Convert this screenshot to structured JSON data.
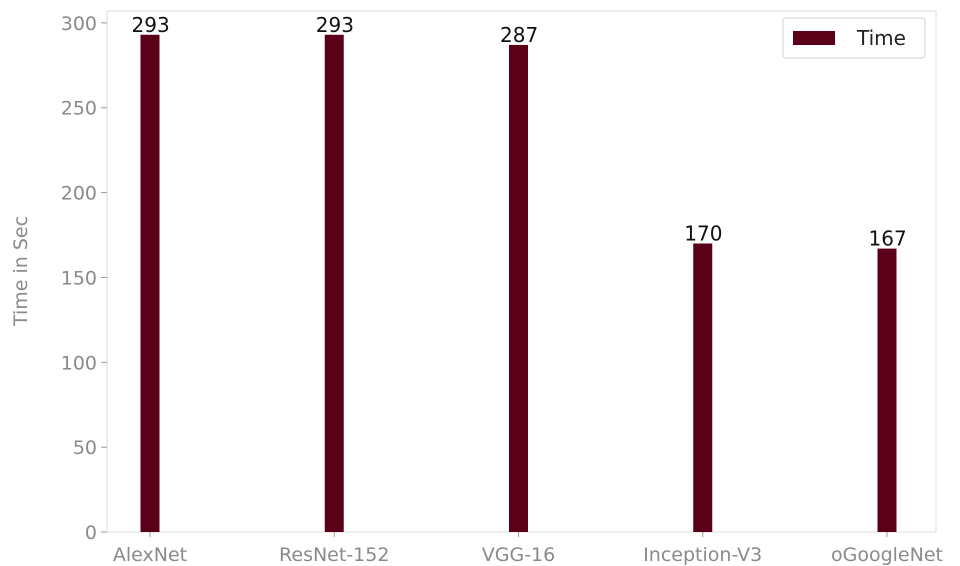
{
  "chart_data": {
    "type": "bar",
    "categories": [
      "AlexNet",
      "ResNet-152",
      "VGG-16",
      "Inception-V3",
      "oGoogleNet"
    ],
    "series": [
      {
        "name": "Time",
        "values": [
          293,
          293,
          287,
          170,
          167
        ],
        "color": "#5a0018"
      }
    ],
    "title": "",
    "xlabel": "",
    "ylabel": "Time in Sec",
    "ylim": [
      0,
      307
    ],
    "yticks": [
      0,
      50,
      100,
      150,
      200,
      250,
      300
    ],
    "grid": false,
    "legend": {
      "position": "top-right",
      "entries": [
        "Time"
      ]
    }
  }
}
